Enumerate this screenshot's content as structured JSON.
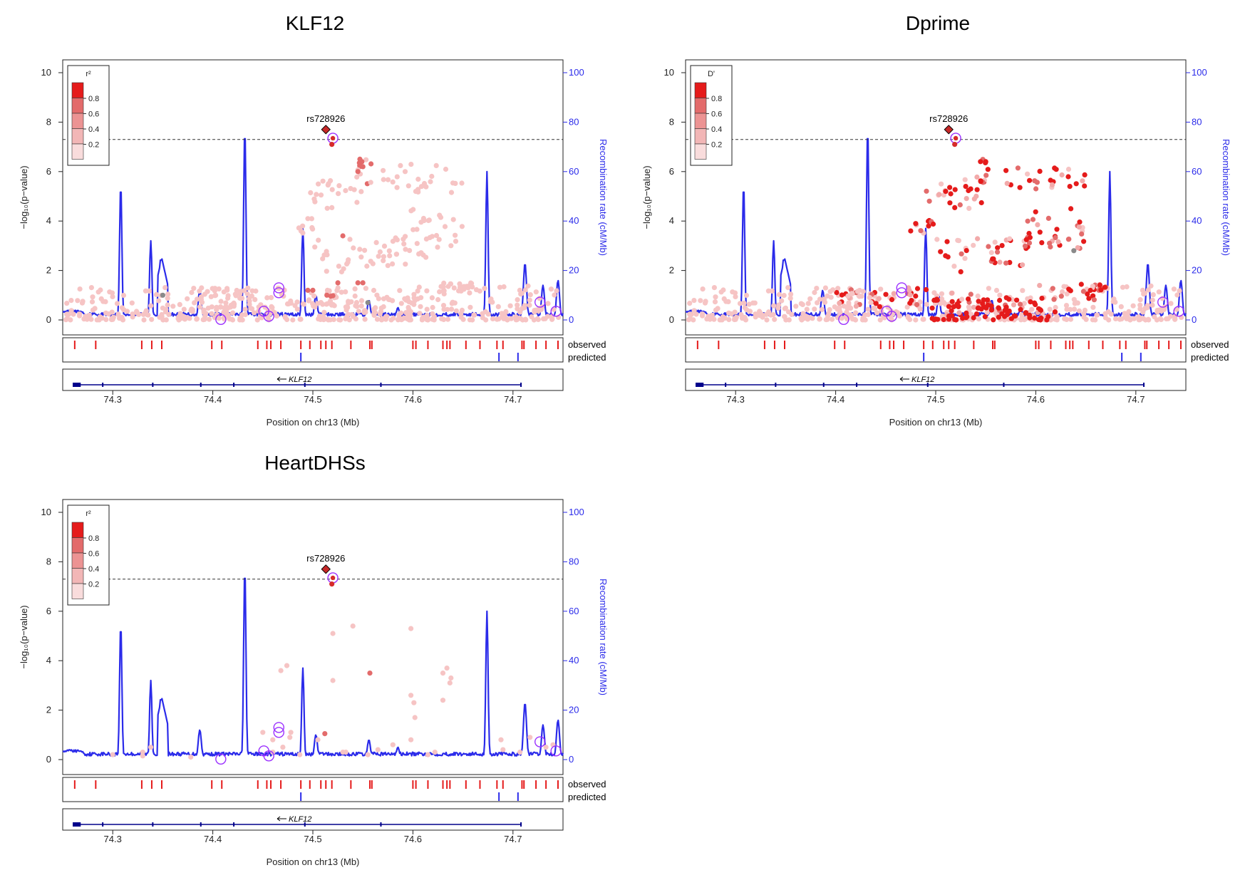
{
  "chart_data": [
    {
      "type": "scatter",
      "title": "KLF12",
      "legend_label": "r²",
      "legend_ticks": [
        "0.8",
        "0.6",
        "0.4",
        "0.2"
      ],
      "xlabel": "Position on chr13 (Mb)",
      "ylabel": "−log₁₀(p−value)",
      "y2label": "Recombination rate (cM/Mb)",
      "xlim": [
        74.25,
        74.75
      ],
      "ylim": [
        0,
        10
      ],
      "y2lim": [
        0,
        100
      ],
      "xticks": [
        "74.3",
        "74.4",
        "74.5",
        "74.6",
        "74.7"
      ],
      "yticks": [
        "0",
        "2",
        "4",
        "6",
        "8",
        "10"
      ],
      "y2ticks": [
        "0",
        "20",
        "40",
        "60",
        "80",
        "100"
      ],
      "threshold": 7.3,
      "lead_snp": {
        "label": "rs728926",
        "x": 74.513,
        "y": 7.7
      },
      "point_mode": "r2",
      "tracks": {
        "observed": "observed",
        "predicted": "predicted"
      },
      "gene": "KLF12"
    },
    {
      "type": "scatter",
      "title": "Dprime",
      "legend_label": "D'",
      "legend_ticks": [
        "0.8",
        "0.6",
        "0.4",
        "0.2"
      ],
      "xlabel": "Position on chr13 (Mb)",
      "ylabel": "−log₁₀(p−value)",
      "y2label": "Recombination rate (cM/Mb)",
      "xlim": [
        74.25,
        74.75
      ],
      "ylim": [
        0,
        10
      ],
      "y2lim": [
        0,
        100
      ],
      "xticks": [
        "74.3",
        "74.4",
        "74.5",
        "74.6",
        "74.7"
      ],
      "yticks": [
        "0",
        "2",
        "4",
        "6",
        "8",
        "10"
      ],
      "y2ticks": [
        "0",
        "20",
        "40",
        "60",
        "80",
        "100"
      ],
      "threshold": 7.3,
      "lead_snp": {
        "label": "rs728926",
        "x": 74.513,
        "y": 7.7
      },
      "point_mode": "dprime",
      "tracks": {
        "observed": "observed",
        "predicted": "predicted"
      },
      "gene": "KLF12"
    },
    {
      "type": "scatter",
      "title": "HeartDHSs",
      "legend_label": "r²",
      "legend_ticks": [
        "0.8",
        "0.6",
        "0.4",
        "0.2"
      ],
      "xlabel": "Position on chr13 (Mb)",
      "ylabel": "−log₁₀(p−value)",
      "y2label": "Recombination rate (cM/Mb)",
      "xlim": [
        74.25,
        74.75
      ],
      "ylim": [
        0,
        10
      ],
      "y2lim": [
        0,
        100
      ],
      "xticks": [
        "74.3",
        "74.4",
        "74.5",
        "74.6",
        "74.7"
      ],
      "yticks": [
        "0",
        "2",
        "4",
        "6",
        "8",
        "10"
      ],
      "y2ticks": [
        "0",
        "20",
        "40",
        "60",
        "80",
        "100"
      ],
      "threshold": 7.3,
      "lead_snp": {
        "label": "rs728926",
        "x": 74.513,
        "y": 7.7
      },
      "point_mode": "sparse",
      "tracks": {
        "observed": "observed",
        "predicted": "predicted"
      },
      "gene": "KLF12"
    }
  ],
  "shared": {
    "recomb_peaks": [
      {
        "x": 74.308,
        "h": 55
      },
      {
        "x": 74.338,
        "h": 32
      },
      {
        "x": 74.348,
        "h": 25
      },
      {
        "x": 74.387,
        "h": 12
      },
      {
        "x": 74.432,
        "h": 78
      },
      {
        "x": 74.49,
        "h": 37
      },
      {
        "x": 74.503,
        "h": 10
      },
      {
        "x": 74.556,
        "h": 8
      },
      {
        "x": 74.585,
        "h": 5
      },
      {
        "x": 74.674,
        "h": 60
      },
      {
        "x": 74.712,
        "h": 23
      },
      {
        "x": 74.73,
        "h": 14
      },
      {
        "x": 74.745,
        "h": 16
      }
    ],
    "observed_x": [
      74.262,
      74.283,
      74.329,
      74.339,
      74.349,
      74.399,
      74.409,
      74.445,
      74.454,
      74.458,
      74.468,
      74.488,
      74.497,
      74.508,
      74.513,
      74.519,
      74.538,
      74.557,
      74.559,
      74.6,
      74.603,
      74.615,
      74.63,
      74.634,
      74.637,
      74.653,
      74.667,
      74.684,
      74.69,
      74.709,
      74.711,
      74.723,
      74.733,
      74.745
    ],
    "predicted_x": [
      74.488,
      74.686,
      74.705
    ],
    "gene_exons": [
      74.29,
      74.34,
      74.388,
      74.421,
      74.492,
      74.568
    ],
    "gene_start": 74.26,
    "gene_end": 74.708,
    "gene_label_x": 74.5,
    "circled": [
      {
        "x": 74.52,
        "y": 7.35
      },
      {
        "x": 74.466,
        "y": 1.3
      },
      {
        "x": 74.466,
        "y": 1.1
      },
      {
        "x": 74.451,
        "y": 0.35
      },
      {
        "x": 74.456,
        "y": 0.15
      },
      {
        "x": 74.408,
        "y": 0.02
      },
      {
        "x": 74.727,
        "y": 0.72
      },
      {
        "x": 74.743,
        "y": 0.35
      }
    ],
    "colors": {
      "recomb": "#2b2bea",
      "circle": "#9b30ff",
      "lead": "#c62828",
      "grey": "#8a8a8a"
    }
  }
}
